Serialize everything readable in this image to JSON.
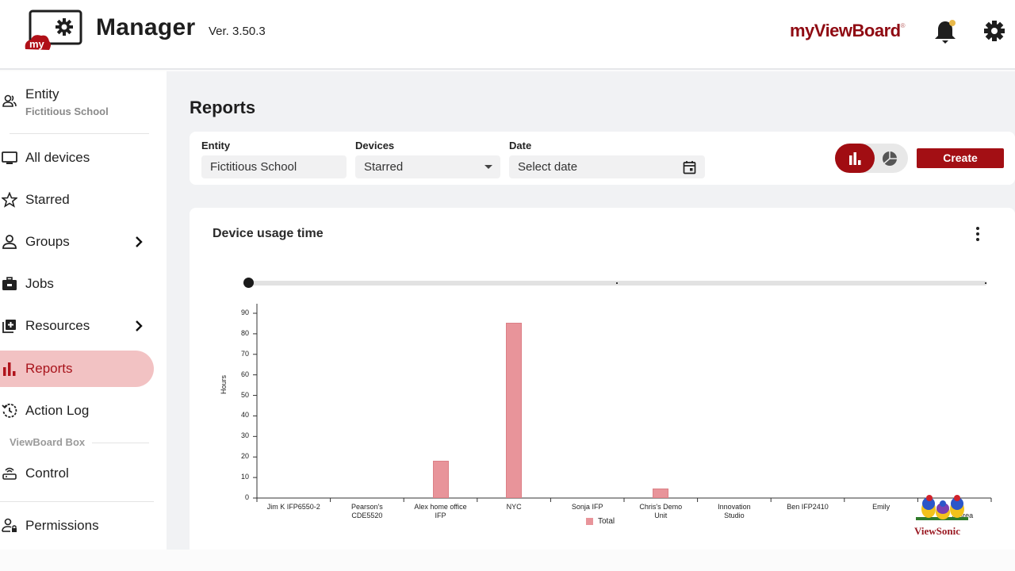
{
  "header": {
    "logo_badge": "my",
    "app_title": "Manager",
    "version": "Ver. 3.50.3",
    "brand": "myViewBoard",
    "brand_mark": "®",
    "notification_dot_color": "#e8b84a"
  },
  "sidebar": {
    "entity": {
      "label": "Entity",
      "value": "Fictitious School",
      "icon": "people-icon"
    },
    "items": [
      {
        "label": "All devices",
        "icon": "monitor-icon",
        "has_chevron": false
      },
      {
        "label": "Starred",
        "icon": "star-icon",
        "has_chevron": false
      },
      {
        "label": "Groups",
        "icon": "person-icon",
        "has_chevron": true
      },
      {
        "label": "Jobs",
        "icon": "briefcase-icon",
        "has_chevron": false
      },
      {
        "label": "Resources",
        "icon": "library-add-icon",
        "has_chevron": true
      },
      {
        "label": "Reports",
        "icon": "bar-chart-icon",
        "has_chevron": false,
        "active": true
      },
      {
        "label": "Action Log",
        "icon": "history-icon",
        "has_chevron": false
      }
    ],
    "section_label": "ViewBoard Box",
    "box_items": [
      {
        "label": "Control",
        "icon": "router-icon"
      },
      {
        "label": "Permissions",
        "icon": "user-lock-icon"
      }
    ]
  },
  "main": {
    "page_title": "Reports",
    "filters": {
      "entity_label": "Entity",
      "entity_value": "Fictitious School",
      "devices_label": "Devices",
      "devices_value": "Starred",
      "date_label": "Date",
      "date_placeholder": "Select date"
    },
    "view_toggle": {
      "selected": "bar",
      "options": [
        "bar",
        "pie"
      ]
    },
    "create_label": "Create",
    "accent_color": "#a30f14"
  },
  "chart_card": {
    "title": "Device usage time",
    "legend_label": "Total",
    "watermark": "ViewSonic"
  },
  "chart_data": {
    "type": "bar",
    "title": "Device usage time",
    "xlabel": "",
    "ylabel": "Hours",
    "ylim": [
      0,
      90
    ],
    "yticks": [
      0,
      10,
      20,
      30,
      40,
      50,
      60,
      70,
      80,
      90
    ],
    "grid": false,
    "legend_position": "bottom",
    "categories": [
      "Jim K IFP6550-2",
      "Pearson's CDE5520",
      "Alex home office IFP",
      "NYC",
      "Sonja IFP",
      "Chris's Demo Unit",
      "Innovation Studio",
      "Ben IFP2410",
      "Emily",
      "…2-Brea"
    ],
    "category_lines": [
      [
        "Jim K IFP6550-2"
      ],
      [
        "Pearson's",
        "CDE5520"
      ],
      [
        "Alex home office",
        "IFP"
      ],
      [
        "NYC"
      ],
      [
        "Sonja IFP"
      ],
      [
        "Chris's Demo",
        "Unit"
      ],
      [
        "Innovation",
        "Studio"
      ],
      [
        "Ben IFP2410"
      ],
      [
        "Emily"
      ],
      [
        "2-Brea"
      ]
    ],
    "series": [
      {
        "name": "Total",
        "color": "#e8949a",
        "values": [
          0,
          0,
          18,
          85.5,
          0,
          4.5,
          0,
          0,
          0,
          0
        ]
      }
    ]
  }
}
